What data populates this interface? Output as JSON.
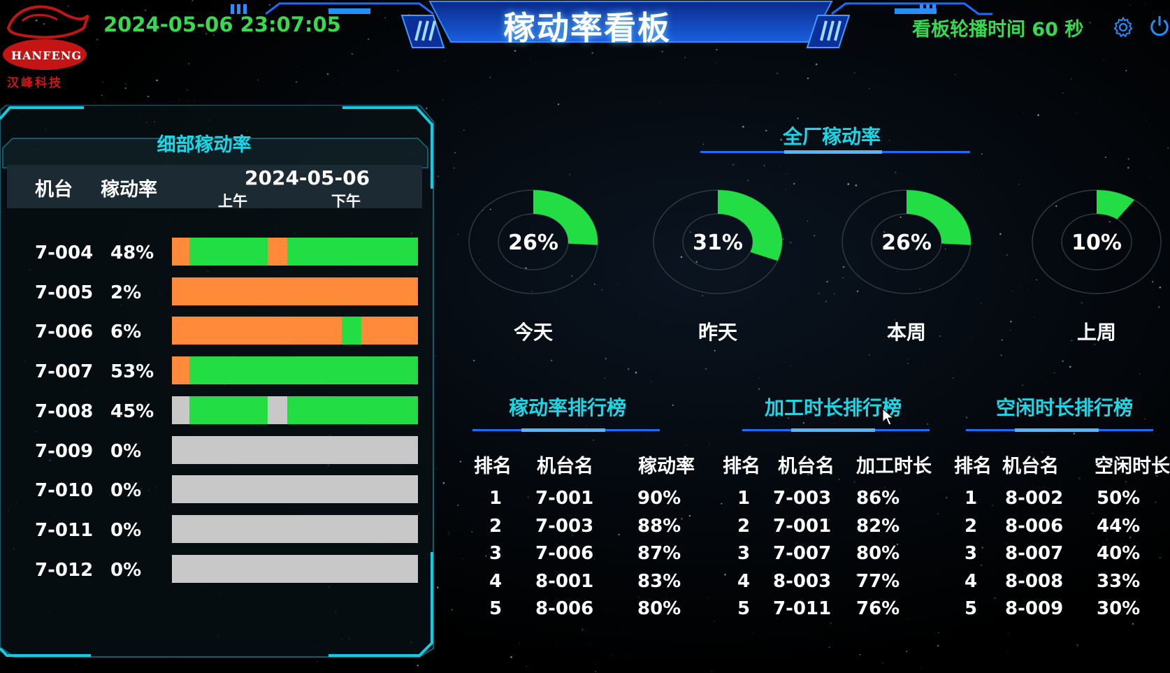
{
  "header": {
    "datetime": "2024-05-06 23:07:05",
    "title": "稼动率看板",
    "rotation": "看板轮播时间 60 秒",
    "logo_text": "HANFENG",
    "logo_sub": "汉峰科技"
  },
  "detail": {
    "title": "细部稼动率",
    "col_machine": "机台",
    "col_rate": "稼动率",
    "date": "2024-05-06",
    "am": "上午",
    "pm": "下午",
    "colors": {
      "run": "#22dd44",
      "stop": "#ff8a3a",
      "idle": "#c8c8c8"
    },
    "rows": [
      {
        "machine": "7-004",
        "rate": "48%",
        "segments": [
          [
            "stop",
            0.07
          ],
          [
            "run",
            0.32
          ],
          [
            "stop",
            0.08
          ],
          [
            "run",
            0.53
          ]
        ]
      },
      {
        "machine": "7-005",
        "rate": "2%",
        "segments": [
          [
            "stop",
            1.0
          ]
        ]
      },
      {
        "machine": "7-006",
        "rate": "6%",
        "segments": [
          [
            "stop",
            0.69
          ],
          [
            "run",
            0.08
          ],
          [
            "stop",
            0.23
          ]
        ]
      },
      {
        "machine": "7-007",
        "rate": "53%",
        "segments": [
          [
            "stop",
            0.07
          ],
          [
            "run",
            0.93
          ]
        ]
      },
      {
        "machine": "7-008",
        "rate": "45%",
        "segments": [
          [
            "idle",
            0.07
          ],
          [
            "run",
            0.32
          ],
          [
            "idle",
            0.08
          ],
          [
            "run",
            0.53
          ]
        ]
      },
      {
        "machine": "7-009",
        "rate": "0%",
        "segments": [
          [
            "idle",
            1.0
          ]
        ]
      },
      {
        "machine": "7-010",
        "rate": "0%",
        "segments": [
          [
            "idle",
            1.0
          ]
        ]
      },
      {
        "machine": "7-011",
        "rate": "0%",
        "segments": [
          [
            "idle",
            1.0
          ]
        ]
      },
      {
        "machine": "7-012",
        "rate": "0%",
        "segments": [
          [
            "idle",
            1.0
          ]
        ]
      }
    ]
  },
  "plant": {
    "title": "全厂稼动率",
    "gauges": [
      {
        "label": "今天",
        "value": 26,
        "text": "26%"
      },
      {
        "label": "昨天",
        "value": 31,
        "text": "31%"
      },
      {
        "label": "本周",
        "value": 26,
        "text": "26%"
      },
      {
        "label": "上周",
        "value": 10,
        "text": "10%"
      }
    ]
  },
  "rankings": [
    {
      "title": "稼动率排行榜",
      "headers": [
        "排名",
        "机台名",
        "稼动率"
      ],
      "rows": [
        [
          "1",
          "7-001",
          "90%"
        ],
        [
          "2",
          "7-003",
          "88%"
        ],
        [
          "3",
          "7-006",
          "87%"
        ],
        [
          "4",
          "8-001",
          "83%"
        ],
        [
          "5",
          "8-006",
          "80%"
        ]
      ]
    },
    {
      "title": "加工时长排行榜",
      "headers": [
        "排名",
        "机台名",
        "加工时长"
      ],
      "rows": [
        [
          "1",
          "7-003",
          "86%"
        ],
        [
          "2",
          "7-001",
          "82%"
        ],
        [
          "3",
          "7-007",
          "80%"
        ],
        [
          "4",
          "8-003",
          "77%"
        ],
        [
          "5",
          "7-011",
          "76%"
        ]
      ]
    },
    {
      "title": "空闲时长排行榜",
      "headers": [
        "排名",
        "机台名",
        "空闲时长"
      ],
      "rows": [
        [
          "1",
          "8-002",
          "50%"
        ],
        [
          "2",
          "8-006",
          "44%"
        ],
        [
          "3",
          "8-007",
          "40%"
        ],
        [
          "4",
          "8-008",
          "33%"
        ],
        [
          "5",
          "8-009",
          "30%"
        ]
      ]
    }
  ]
}
